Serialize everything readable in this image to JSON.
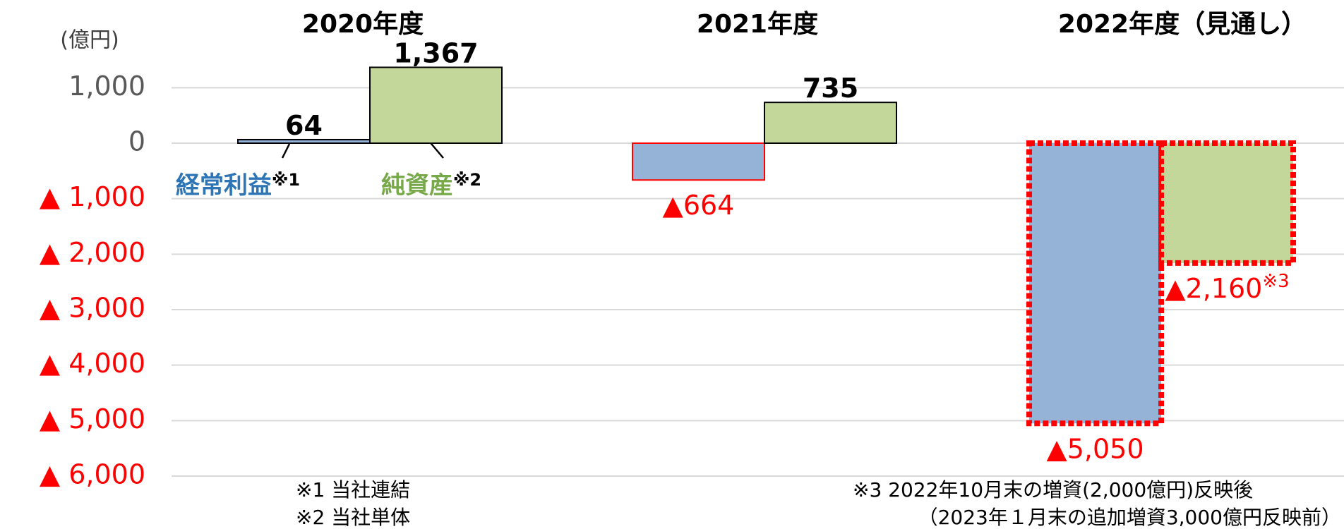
{
  "chart_data": {
    "type": "bar",
    "unit_label": "(億円)",
    "categories": [
      "2020年度",
      "2021年度",
      "2022年度（見通し）"
    ],
    "series": [
      {
        "name": "経常利益",
        "name_note": "※1",
        "color": "#95b3d7",
        "label_color": "#2e75b6",
        "values": [
          64,
          -664,
          -5050
        ],
        "value_labels": [
          "64",
          "▲664",
          "▲5,050"
        ]
      },
      {
        "name": "純資産",
        "name_note": "※2",
        "color": "#c4d79b",
        "label_color": "#77a94a",
        "values": [
          1367,
          735,
          -2160
        ],
        "value_labels": [
          "1,367",
          "735",
          "▲2,160"
        ],
        "value_notes": [
          null,
          null,
          "※3"
        ]
      }
    ],
    "ylim": [
      -6000,
      1500
    ],
    "yticks": [
      {
        "value": 1000,
        "label": "1,000"
      },
      0,
      {
        "value": -1000,
        "label": "▲ 1,000"
      },
      {
        "value": -2000,
        "label": "▲ 2,000"
      },
      {
        "value": -3000,
        "label": "▲ 3,000"
      },
      {
        "value": -4000,
        "label": "▲ 4,000"
      },
      {
        "value": -5000,
        "label": "▲ 5,000"
      },
      {
        "value": -6000,
        "label": "▲ 6,000"
      }
    ],
    "grid": true,
    "negative_color": "#ff0000",
    "highlight_categories": [
      2
    ],
    "footnotes": [
      "※1 当社連結",
      "※2 当社単体",
      "※3 2022年10月末の増資(2,000億円)反映後",
      "（2023年１月末の追加増資3,000億円反映前）"
    ]
  }
}
